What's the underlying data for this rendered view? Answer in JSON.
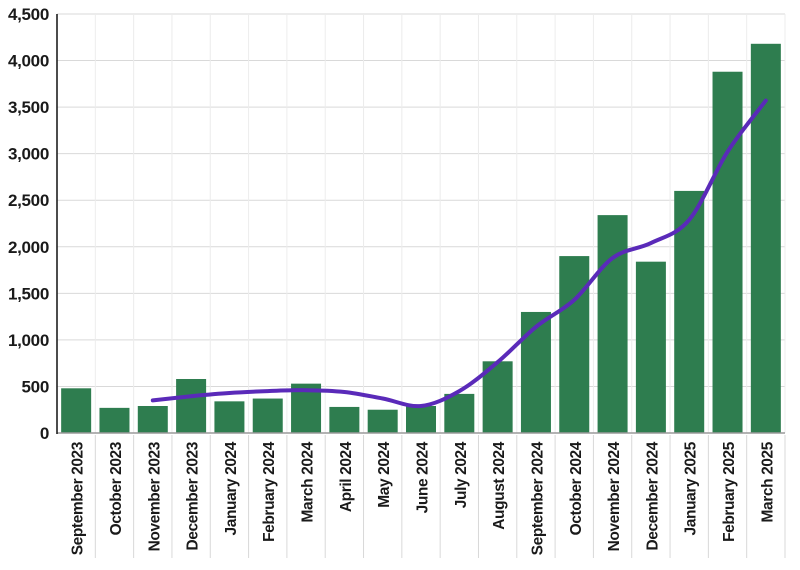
{
  "chart_data": {
    "type": "bar",
    "title": "",
    "xlabel": "",
    "ylabel": "",
    "categories": [
      "September 2023",
      "October 2023",
      "November 2023",
      "December 2023",
      "January 2024",
      "February 2024",
      "March 2024",
      "April 2024",
      "May 2024",
      "June 2024",
      "July 2024",
      "August 2024",
      "September 2024",
      "October 2024",
      "November 2024",
      "December 2024",
      "January 2025",
      "February 2025",
      "March 2025"
    ],
    "series": [
      {
        "name": "monthly-values",
        "type": "bar",
        "color": "#2e7d4f",
        "values": [
          480,
          270,
          290,
          580,
          340,
          370,
          530,
          280,
          250,
          290,
          420,
          770,
          1300,
          1900,
          2340,
          1840,
          2600,
          3880,
          4180
        ]
      },
      {
        "name": "trend-line",
        "type": "line",
        "color": "#5a2ab9",
        "values": [
          null,
          null,
          350,
          395,
          430,
          450,
          460,
          440,
          370,
          290,
          450,
          760,
          1140,
          1430,
          1880,
          2040,
          2290,
          3020,
          3570
        ]
      }
    ],
    "ylim": [
      0,
      4500
    ],
    "ytick_step": 500,
    "ytick_labels": [
      "0",
      "500",
      "1,000",
      "1,500",
      "2,000",
      "2,500",
      "3,000",
      "3,500",
      "4,000",
      "4,500"
    ],
    "grid": "horizontal-and-vertical",
    "legend": "none"
  },
  "style": {
    "background": "#ffffff",
    "bar_color": "#2e7d4f",
    "line_color": "#5a2ab9",
    "hgrid_color": "#d9d9d9",
    "vgrid_plot_color": "#ececec",
    "vgrid_label_color": "#d8d8d8",
    "axis_color": "#1f1f1f",
    "baseline_color": "#9a9a9a",
    "label_color": "#1a1a1a"
  }
}
